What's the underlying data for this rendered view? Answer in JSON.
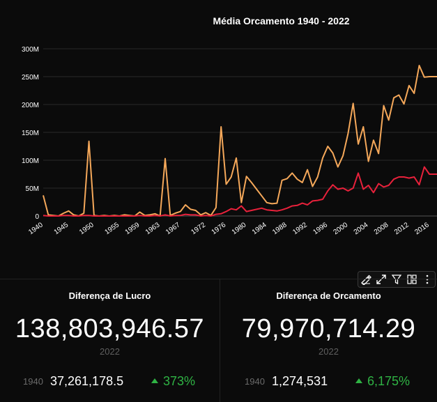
{
  "chart": {
    "title": "Média Orcamento 1940 - 2022"
  },
  "chart_data": {
    "type": "line",
    "title": "Média Orcamento 1940 - 2022",
    "xlabel": "",
    "ylabel": "",
    "ylim": [
      0,
      300000000
    ],
    "yticks": [
      "0",
      "50M",
      "100M",
      "150M",
      "200M",
      "250M",
      "300M"
    ],
    "xticks": [
      "1940",
      "1945",
      "1950",
      "1955",
      "1959",
      "1963",
      "1967",
      "1972",
      "1976",
      "1980",
      "1984",
      "1988",
      "1992",
      "1996",
      "2000",
      "2004",
      "2008",
      "2012",
      "2016"
    ],
    "x": [
      1940,
      1941,
      1942,
      1943,
      1944,
      1945,
      1946,
      1947,
      1948,
      1949,
      1950,
      1951,
      1952,
      1953,
      1954,
      1955,
      1956,
      1957,
      1958,
      1959,
      1960,
      1961,
      1962,
      1963,
      1964,
      1965,
      1966,
      1967,
      1968,
      1969,
      1970,
      1971,
      1972,
      1973,
      1974,
      1975,
      1976,
      1977,
      1978,
      1979,
      1980,
      1981,
      1982,
      1983,
      1984,
      1985,
      1986,
      1987,
      1988,
      1989,
      1990,
      1991,
      1992,
      1993,
      1994,
      1995,
      1996,
      1997,
      1998,
      1999,
      2000,
      2001,
      2002,
      2003,
      2004,
      2005,
      2006,
      2007,
      2008,
      2009,
      2010,
      2011,
      2012,
      2013,
      2014,
      2015,
      2016,
      2017,
      2018
    ],
    "grid": true,
    "series": [
      {
        "color": "#f5a85a",
        "values": [
          37,
          2,
          1,
          0,
          5,
          9,
          2,
          0,
          5,
          134,
          1,
          0,
          1,
          0,
          1,
          0,
          2,
          1,
          0,
          7,
          1,
          2,
          4,
          0,
          103,
          1,
          5,
          8,
          20,
          12,
          10,
          2,
          6,
          1,
          15,
          160,
          57,
          70,
          104,
          24,
          71,
          60,
          48,
          36,
          24,
          22,
          23,
          64,
          67,
          77,
          66,
          60,
          83,
          53,
          70,
          104,
          125,
          113,
          88,
          108,
          148,
          202,
          129,
          160,
          98,
          136,
          112,
          198,
          172,
          212,
          217,
          201,
          234,
          220,
          270,
          249,
          250,
          250,
          250
        ]
      },
      {
        "color": "#e8213b",
        "values": [
          1,
          0,
          0,
          0,
          1,
          1,
          0,
          0,
          1,
          1,
          0,
          0,
          0,
          0,
          0,
          0,
          0,
          0,
          0,
          1,
          0,
          0,
          1,
          0,
          2,
          0,
          1,
          1,
          3,
          2,
          2,
          0,
          1,
          0,
          3,
          4,
          8,
          13,
          11,
          18,
          8,
          10,
          12,
          14,
          11,
          10,
          9,
          11,
          14,
          18,
          19,
          23,
          20,
          27,
          28,
          30,
          45,
          56,
          48,
          50,
          45,
          50,
          77,
          48,
          55,
          42,
          58,
          52,
          55,
          66,
          70,
          70,
          68,
          70,
          56,
          88,
          75,
          75,
          75
        ]
      }
    ]
  },
  "toolbar": {
    "icons": [
      "annotation-icon",
      "expand-icon",
      "filter-icon",
      "layout-icon",
      "more-icon"
    ]
  },
  "kpi_left": {
    "title": "Diferença de Lucro",
    "value": "138,803,946.57",
    "year": "2022",
    "compare_year": "1940",
    "compare_value": "37,261,178.5",
    "delta": "373%",
    "delta_color": "#2fb344"
  },
  "kpi_right": {
    "title": "Diferença de Orcamento",
    "value": "79,970,714.29",
    "year": "2022",
    "compare_year": "1940",
    "compare_value": "1,274,531",
    "delta": "6,175%",
    "delta_color": "#2fb344"
  }
}
